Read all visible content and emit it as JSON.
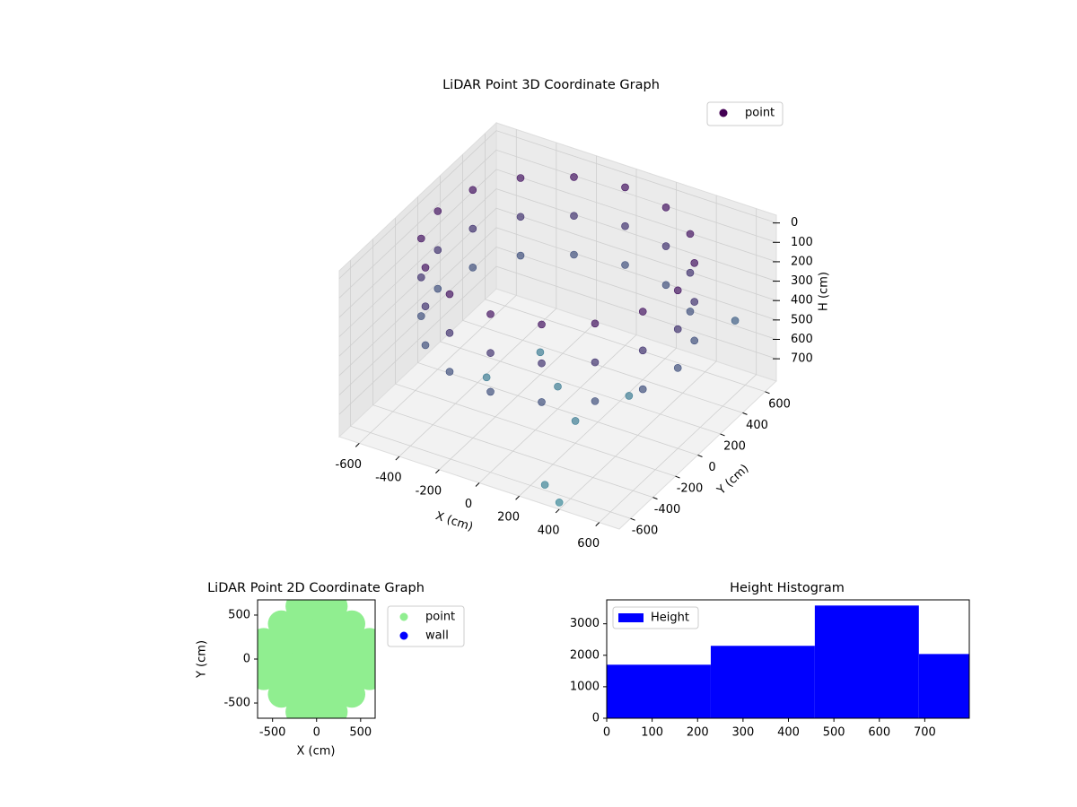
{
  "chart_data": [
    {
      "type": "scatter3d",
      "title": "LiDAR Point 3D Coordinate Graph",
      "xlabel": "X (cm)",
      "ylabel": "Y (cm)",
      "zlabel": "H (cm)",
      "xlim": [
        -700,
        700
      ],
      "ylim": [
        -700,
        700
      ],
      "zlim": [
        815,
        -40
      ],
      "xticks": [
        -600,
        -400,
        -200,
        0,
        200,
        400,
        600
      ],
      "yticks": [
        -600,
        -400,
        -200,
        0,
        200,
        400,
        600
      ],
      "zticks": [
        0,
        100,
        200,
        300,
        400,
        500,
        600,
        700
      ],
      "depth_colors": [
        "#46105f",
        "#3d8f9c"
      ],
      "series": [
        {
          "name": "point",
          "color": "#440154",
          "x": [
            600,
            554,
            424,
            230,
            0,
            -230,
            -424,
            -554,
            -600,
            -554,
            -424,
            -230,
            0,
            230,
            424,
            554,
            600,
            554,
            424,
            230,
            0,
            -230,
            -424,
            -554,
            -600,
            -554,
            -424,
            -230,
            0,
            230,
            424,
            554,
            600,
            554,
            424,
            230,
            0,
            -230,
            -424,
            -554,
            -600,
            -554,
            -424,
            -230,
            0,
            230,
            424,
            554,
            0,
            200,
            -200,
            300,
            -300,
            300,
            400,
            550
          ],
          "y": [
            0,
            230,
            424,
            554,
            600,
            554,
            424,
            230,
            0,
            -230,
            -424,
            -554,
            -600,
            -554,
            -424,
            -230,
            0,
            230,
            424,
            554,
            600,
            554,
            424,
            230,
            0,
            -230,
            -424,
            -554,
            -600,
            -554,
            -424,
            -230,
            0,
            230,
            424,
            554,
            600,
            554,
            424,
            230,
            0,
            -230,
            -424,
            -554,
            -600,
            -554,
            -424,
            -230,
            0,
            -200,
            200,
            100,
            -100,
            -650,
            -700,
            600
          ],
          "z": [
            0,
            0,
            0,
            0,
            0,
            0,
            0,
            0,
            0,
            0,
            0,
            0,
            0,
            0,
            0,
            0,
            200,
            200,
            200,
            200,
            200,
            200,
            200,
            200,
            200,
            200,
            200,
            200,
            200,
            200,
            200,
            200,
            400,
            400,
            400,
            400,
            400,
            400,
            400,
            400,
            400,
            400,
            400,
            400,
            400,
            400,
            400,
            400,
            700,
            700,
            700,
            700,
            700,
            750,
            780,
            500
          ]
        }
      ]
    },
    {
      "type": "scatter",
      "title": "LiDAR Point 2D Coordinate Graph",
      "xlabel": "X (cm)",
      "ylabel": "Y (cm)",
      "xlim": [
        -670,
        665
      ],
      "ylim": [
        -673,
        673
      ],
      "xticks": [
        -500,
        0,
        500
      ],
      "yticks": [
        -500,
        0,
        500
      ],
      "series": [
        {
          "name": "point",
          "color": "#90ee90",
          "x": [
            -600,
            -600,
            -600,
            -400,
            -400,
            -400,
            -400,
            -400,
            -200,
            -200,
            -200,
            -200,
            -200,
            -200,
            -200,
            0,
            0,
            0,
            0,
            0,
            0,
            0,
            200,
            200,
            200,
            200,
            200,
            200,
            200,
            400,
            400,
            400,
            400,
            400,
            600,
            600,
            600
          ],
          "y": [
            -200,
            0,
            200,
            -400,
            -200,
            0,
            200,
            400,
            -600,
            -400,
            -200,
            0,
            200,
            400,
            600,
            -600,
            -400,
            -200,
            0,
            200,
            400,
            600,
            -600,
            -400,
            -200,
            0,
            200,
            400,
            600,
            -400,
            -200,
            0,
            200,
            400,
            -200,
            0,
            200
          ]
        },
        {
          "name": "wall",
          "color": "#0000ff",
          "x": [],
          "y": []
        }
      ]
    },
    {
      "type": "histogram",
      "title": "Height Histogram",
      "bins": [
        0,
        229,
        458,
        687,
        798
      ],
      "counts": [
        1700,
        2300,
        3580,
        2040
      ],
      "name": "Height",
      "color": "#0000ff",
      "xlim": [
        0,
        798
      ],
      "ylim": [
        0,
        3760
      ],
      "xticks": [
        0,
        100,
        200,
        300,
        400,
        500,
        600,
        700
      ],
      "yticks": [
        0,
        1000,
        2000,
        3000
      ]
    }
  ]
}
